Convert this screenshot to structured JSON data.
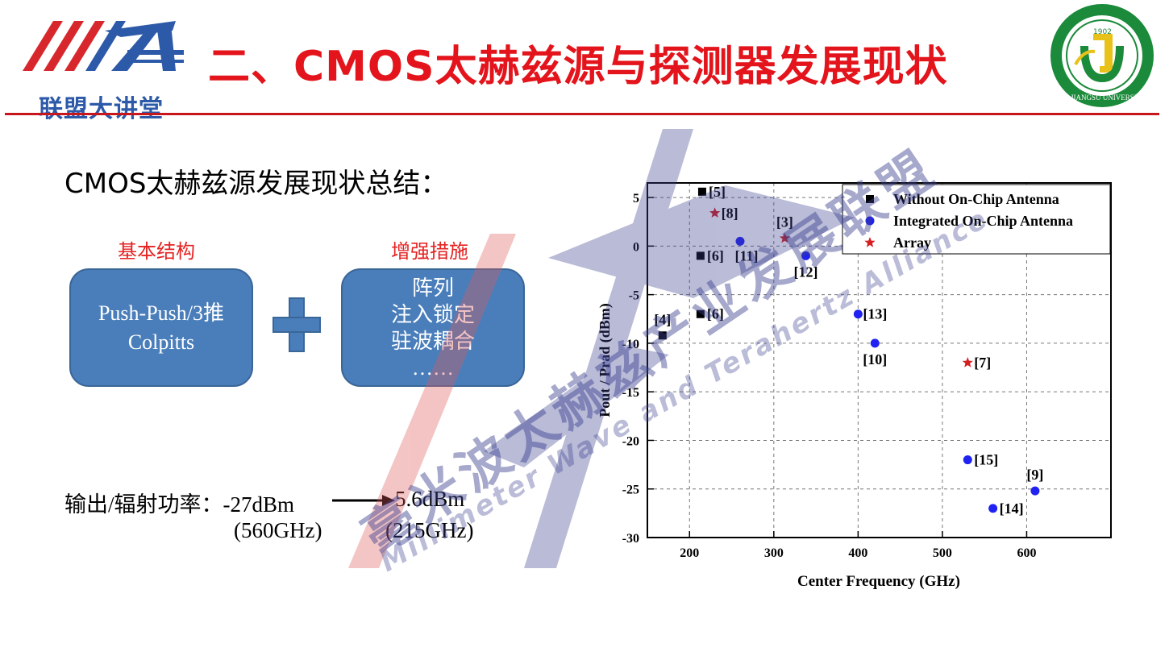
{
  "header": {
    "logo_left_text": "联盟大讲堂",
    "title": "二、CMOS太赫兹源与探测器发展现状",
    "logo_right_year": "1902",
    "logo_right_ring": "JIANGSU UNIVERSITY"
  },
  "subtitle": "CMOS太赫兹源发展现状总结：",
  "basic": {
    "heading": "基本结构",
    "lines": [
      "Push-Push/3推",
      "Colpitts"
    ]
  },
  "enhance": {
    "heading": "增强措施",
    "lines": [
      "阵列",
      "注入锁定",
      "驻波耦合",
      "……"
    ]
  },
  "power": {
    "label": "输出/辐射功率：-27dBm",
    "to_value": "5.6dBm",
    "from_freq": "(560GHz)",
    "to_freq": "(215GHz)"
  },
  "watermark": {
    "cn": "毫米波太赫兹产业发展联盟",
    "en": "Millimeter Wave and Terahertz Alliance"
  },
  "colors": {
    "title_red": "#e3141b",
    "box_blue": "#4a7ebb",
    "series_black": "#000000",
    "series_blue": "#1f22f0",
    "series_red": "#d42020"
  },
  "chart_data": {
    "type": "scatter",
    "xlabel": "Center Frequency (GHz)",
    "ylabel": "Pout / Prad (dBm)",
    "xlim": [
      150,
      700
    ],
    "ylim": [
      -30,
      6.5
    ],
    "xticks": [
      200,
      300,
      400,
      500,
      600
    ],
    "yticks": [
      5,
      0,
      -5,
      -10,
      -15,
      -20,
      -25,
      -30
    ],
    "grid": true,
    "legend_position": "top-right",
    "series": [
      {
        "name": "Without On-Chip Antenna",
        "marker": "square",
        "color": "#000000",
        "points": [
          {
            "x": 215,
            "y": 5.6,
            "label": "[5]"
          },
          {
            "x": 213,
            "y": -1,
            "label": "[6]"
          },
          {
            "x": 213,
            "y": -7,
            "label": "[6]"
          },
          {
            "x": 168,
            "y": -9.2,
            "label": "[4]"
          }
        ]
      },
      {
        "name": "Integrated On-Chip Antenna",
        "marker": "circle",
        "color": "#1f22f0",
        "points": [
          {
            "x": 260,
            "y": 0.5,
            "label": "[11]"
          },
          {
            "x": 338,
            "y": -1,
            "label": "[12]"
          },
          {
            "x": 400,
            "y": -7,
            "label": "[13]"
          },
          {
            "x": 420,
            "y": -10,
            "label": "[10]"
          },
          {
            "x": 530,
            "y": -22,
            "label": "[15]"
          },
          {
            "x": 610,
            "y": -25.2,
            "label": "[9]"
          },
          {
            "x": 560,
            "y": -27,
            "label": "[14]"
          }
        ]
      },
      {
        "name": "Array",
        "marker": "star",
        "color": "#d42020",
        "points": [
          {
            "x": 230,
            "y": 3.4,
            "label": "[8]"
          },
          {
            "x": 313,
            "y": 0.8,
            "label": "[3]"
          },
          {
            "x": 530,
            "y": -12,
            "label": "[7]"
          }
        ]
      }
    ]
  }
}
